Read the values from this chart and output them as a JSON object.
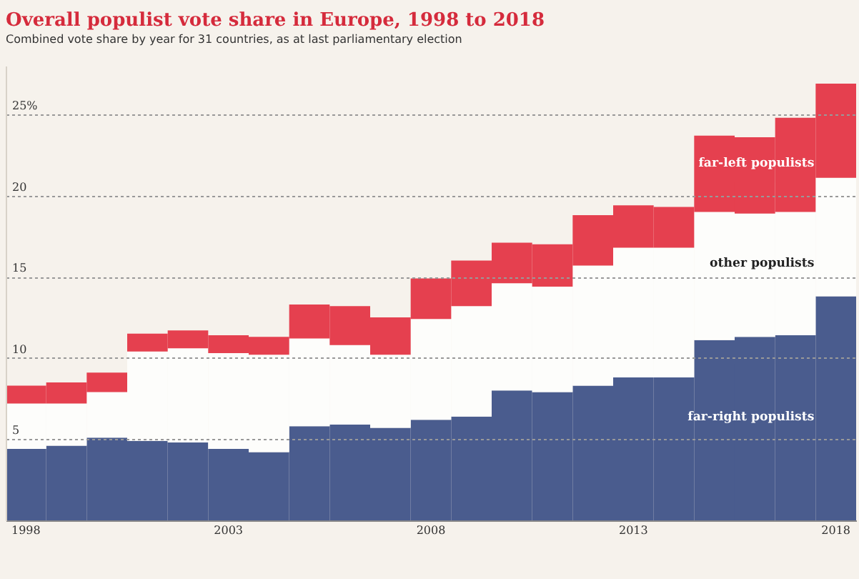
{
  "chart_data": {
    "type": "bar",
    "title": "Overall populist vote share in Europe, 1998 to 2018",
    "subtitle": "Combined vote share by year for 31 countries, as at last parliamentary election",
    "categories": [
      "1998",
      null,
      null,
      null,
      null,
      "2003",
      null,
      null,
      null,
      null,
      "2008",
      null,
      null,
      null,
      null,
      "2013",
      null,
      null,
      null,
      null,
      "2018"
    ],
    "stacked": true,
    "series": [
      {
        "name": "far-right populists",
        "color": "#4a5c8e",
        "values": [
          4.4,
          4.6,
          5.1,
          4.9,
          4.8,
          4.4,
          4.2,
          5.8,
          5.9,
          5.7,
          6.2,
          6.4,
          8.0,
          7.9,
          8.3,
          8.8,
          8.8,
          11.1,
          11.3,
          11.4,
          13.8
        ]
      },
      {
        "name": "other populists",
        "color": "#fdfdfb",
        "values": [
          2.8,
          2.6,
          2.8,
          5.5,
          5.8,
          5.9,
          6.0,
          5.4,
          4.9,
          4.5,
          6.2,
          6.8,
          6.6,
          6.5,
          7.4,
          8.0,
          8.0,
          7.9,
          7.6,
          7.6,
          7.3
        ]
      },
      {
        "name": "far-left populists",
        "color": "#e5404f",
        "values": [
          1.1,
          1.3,
          1.2,
          1.1,
          1.1,
          1.1,
          1.1,
          2.1,
          2.4,
          2.3,
          2.5,
          2.8,
          2.5,
          2.6,
          3.1,
          2.6,
          2.5,
          4.7,
          4.7,
          5.8,
          5.8
        ]
      }
    ],
    "ylim": [
      0,
      28
    ],
    "yticks": [
      5,
      10,
      15,
      20,
      {
        "value": 25,
        "label": "25%"
      }
    ],
    "grid": "y"
  }
}
